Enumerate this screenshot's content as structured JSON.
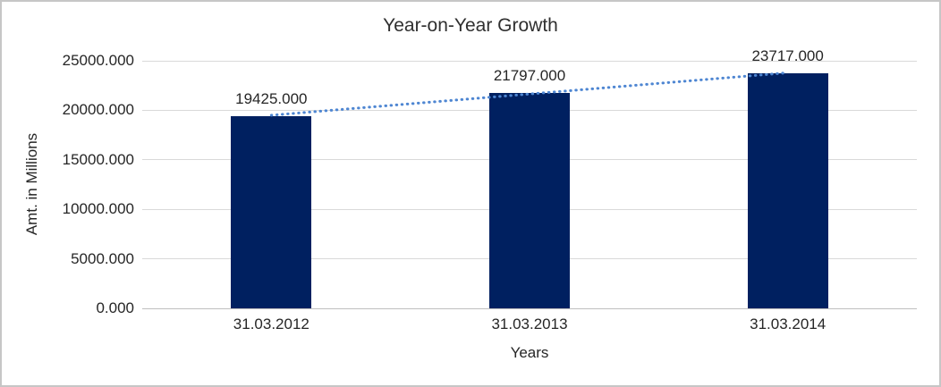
{
  "frame": {
    "border_color": "#c6c6c6",
    "background": "#ffffff"
  },
  "chart_data": {
    "type": "bar",
    "title": "Year-on-Year Growth",
    "xlabel": "Years",
    "ylabel": "Amt. in Millions",
    "categories": [
      "31.03.2012",
      "31.03.2013",
      "31.03.2014"
    ],
    "series": [
      {
        "name": "Amt. in Millions",
        "values": [
          19425,
          21797,
          23717
        ]
      }
    ],
    "value_labels": [
      "19425.000",
      "21797.000",
      "23717.000"
    ],
    "ylim": [
      0,
      25000
    ],
    "ytick_step": 5000,
    "ytick_labels": [
      "0.000",
      "5000.000",
      "10000.000",
      "15000.000",
      "20000.000",
      "25000.000"
    ],
    "grid": true,
    "legend": "none",
    "trendline": {
      "type": "linear",
      "style": "dotted",
      "color": "#4e86d2"
    },
    "colors": {
      "bar": "#002060",
      "gridline": "#d9d9d9",
      "axis_line": "#bfbfbf",
      "text": "#262626"
    }
  }
}
